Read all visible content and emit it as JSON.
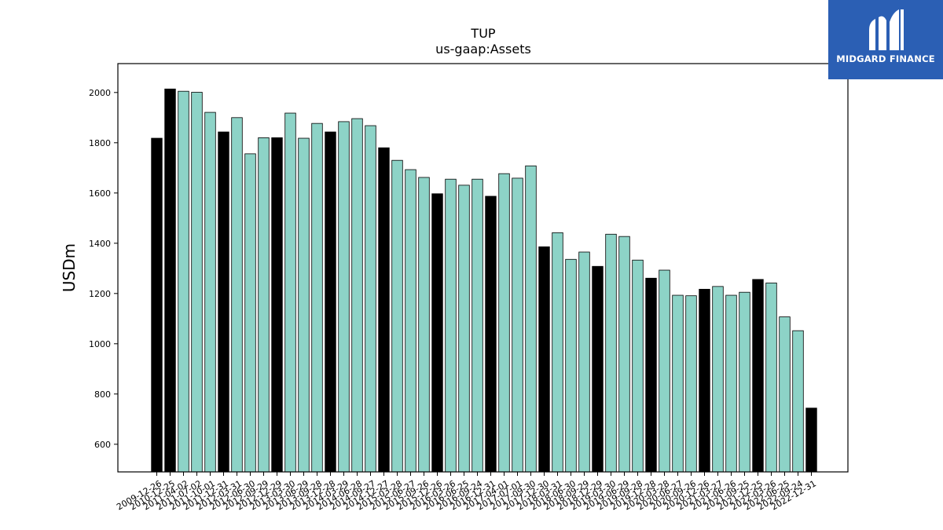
{
  "chart_data": {
    "type": "bar",
    "title": "TUP",
    "subtitle": "us-gaap:Assets",
    "xlabel": "",
    "ylabel": "USDm",
    "ylim": [
      490,
      2115
    ],
    "yticks": [
      600,
      800,
      1000,
      1200,
      1400,
      1600,
      1800,
      2000
    ],
    "grid": false,
    "colors": {
      "annual": "#000000",
      "quarterly": "#8dd3c7",
      "edge": "#000000"
    },
    "categories": [
      "2009-12-26",
      "2010-12-25",
      "2011-04-02",
      "2011-07-02",
      "2011-10-01",
      "2011-12-31",
      "2012-03-31",
      "2012-06-30",
      "2012-09-29",
      "2012-12-29",
      "2013-03-30",
      "2013-06-29",
      "2013-09-28",
      "2013-12-28",
      "2014-03-29",
      "2014-06-28",
      "2014-09-27",
      "2014-12-27",
      "2015-03-28",
      "2015-06-27",
      "2015-09-26",
      "2015-12-26",
      "2016-03-26",
      "2016-06-25",
      "2016-09-24",
      "2016-12-31",
      "2017-04-01",
      "2017-07-01",
      "2017-09-30",
      "2017-12-30",
      "2018-03-31",
      "2018-06-30",
      "2018-09-29",
      "2018-12-29",
      "2019-03-30",
      "2019-06-29",
      "2019-09-28",
      "2019-12-28",
      "2020-03-28",
      "2020-06-27",
      "2020-09-26",
      "2020-12-26",
      "2021-03-27",
      "2021-06-26",
      "2021-09-25",
      "2021-12-25",
      "2022-03-26",
      "2022-06-25",
      "2022-09-24",
      "2022-12-31"
    ],
    "values": [
      1818,
      2014,
      2005,
      2001,
      1921,
      1843,
      1900,
      1756,
      1820,
      1820,
      1918,
      1818,
      1877,
      1843,
      1884,
      1896,
      1868,
      1780,
      1730,
      1693,
      1662,
      1597,
      1655,
      1631,
      1655,
      1587,
      1677,
      1659,
      1708,
      1386,
      1442,
      1336,
      1365,
      1308,
      1436,
      1427,
      1333,
      1261,
      1293,
      1193,
      1191,
      1217,
      1228,
      1193,
      1205,
      1256,
      1242,
      1107,
      1052,
      744
    ],
    "is_annual": [
      true,
      true,
      false,
      false,
      false,
      true,
      false,
      false,
      false,
      true,
      false,
      false,
      false,
      true,
      false,
      false,
      false,
      true,
      false,
      false,
      false,
      true,
      false,
      false,
      false,
      true,
      false,
      false,
      false,
      true,
      false,
      false,
      false,
      true,
      false,
      false,
      false,
      true,
      false,
      false,
      false,
      true,
      false,
      false,
      false,
      true,
      false,
      false,
      false,
      true
    ]
  },
  "logo": {
    "text": "MIDGARD FINANCE",
    "icon": "midgard-m-logo-icon"
  }
}
